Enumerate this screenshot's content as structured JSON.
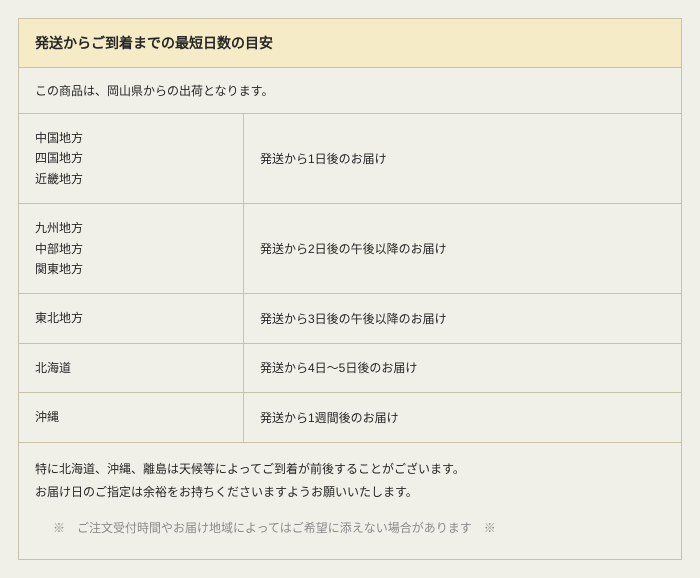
{
  "header": {
    "title": "発送からご到着までの最短日数の目安"
  },
  "intro": "この商品は、岡山県からの出荷となります。",
  "rows": [
    {
      "regions": [
        "中国地方",
        "四国地方",
        "近畿地方"
      ],
      "delivery": "発送から1日後のお届け"
    },
    {
      "regions": [
        "九州地方",
        "中部地方",
        "関東地方"
      ],
      "delivery": "発送から2日後の午後以降のお届け"
    },
    {
      "regions": [
        "東北地方"
      ],
      "delivery": "発送から3日後の午後以降のお届け"
    },
    {
      "regions": [
        "北海道"
      ],
      "delivery": "発送から4日～5日後のお届け"
    },
    {
      "regions": [
        "沖縄"
      ],
      "delivery": "発送から1週間後のお届け"
    }
  ],
  "notes": {
    "line1": "特に北海道、沖縄、離島は天候等によってご到着が前後することがございます。",
    "line2": "お届け日のご指定は余裕をお持ちくださいますようお願いいたします。",
    "asterisk": "※　ご注文受付時間やお届け地域によってはご希望に添えない場合があります　※"
  },
  "colors": {
    "background": "#f1f0e8",
    "header_bg": "#f5ebc6",
    "border": "#c8c2a8",
    "text": "#262626",
    "muted": "#8a8a8a"
  }
}
